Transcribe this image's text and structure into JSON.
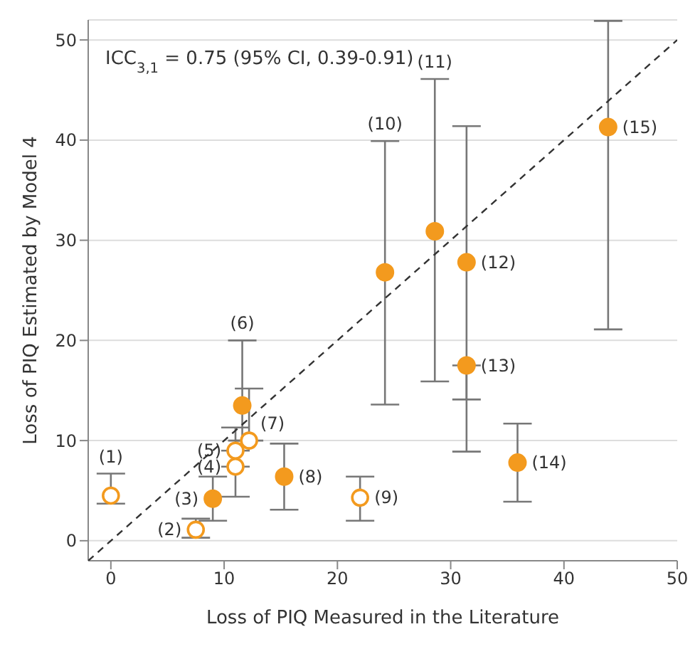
{
  "chart_data": {
    "type": "scatter",
    "xlabel": "Loss of PIQ Measured in the Literature",
    "ylabel": "Loss of PIQ Estimated by Model 4",
    "annotations": [
      "ICC$_{3,1}$ = 0.75 (95% CI, 0.39-0.91)",
      {
        "text": "(1)",
        "x": 0,
        "y": 6.7
      },
      {
        "text": "(2)",
        "x": 7.5,
        "y": 1.1
      },
      {
        "text": "(3)",
        "x": 9,
        "y": 4.2
      },
      {
        "text": "(4)",
        "x": 11,
        "y": 7.4
      },
      {
        "text": "(5)",
        "x": 11,
        "y": 9
      },
      {
        "text": "(6)",
        "x": 11.6,
        "y": 20
      },
      {
        "text": "(7)",
        "x": 12.2,
        "y": 10
      },
      {
        "text": "(8)",
        "x": 15.3,
        "y": 6.4
      },
      {
        "text": "(9)",
        "x": 22,
        "y": 4.3
      },
      {
        "text": "(10)",
        "x": 24.2,
        "y": 39.9
      },
      {
        "text": "(11)",
        "x": 28.6,
        "y": 46.1
      },
      {
        "text": "(12)",
        "x": 31.4,
        "y": 27.8
      },
      {
        "text": "(13)",
        "x": 31.4,
        "y": 17.5
      },
      {
        "text": "(14)",
        "x": 35.9,
        "y": 7.8
      },
      {
        "text": "(15)",
        "x": 43.9,
        "y": 41.3
      }
    ],
    "xlim": [
      -2,
      50
    ],
    "xticks": [
      0,
      10,
      20,
      30,
      40,
      50
    ],
    "ylim": [
      -2,
      52
    ],
    "yticks": [
      0,
      10,
      20,
      30,
      40,
      50
    ],
    "grid": "y",
    "marker": "circle",
    "series": [
      {
        "marker": "circle-open",
        "color": "#f39a1e",
        "x": [
          0,
          7.5,
          11,
          11,
          12.2,
          22
        ],
        "values": [
          4.5,
          1.1,
          7.4,
          9,
          10,
          4.3
        ],
        "errors": [
          [
            3.7,
            6.7
          ],
          [
            0.3,
            2.2
          ],
          [
            4.4,
            7.4
          ],
          [
            9,
            11.3
          ],
          [
            10,
            15.2
          ],
          [
            2,
            6.4
          ]
        ]
      },
      {
        "color": "#f39a1e",
        "x": [
          9,
          11.6,
          15.3,
          24.2,
          28.6,
          31.4,
          31.4,
          35.9,
          43.9
        ],
        "values": [
          4.2,
          13.5,
          6.4,
          26.8,
          30.9,
          27.8,
          17.5,
          7.8,
          41.3
        ],
        "errors": [
          [
            2,
            6.4
          ],
          [
            10,
            20
          ],
          [
            3.1,
            9.7
          ],
          [
            13.6,
            39.9
          ],
          [
            15.9,
            46.1
          ],
          [
            14.1,
            41.4
          ],
          [
            8.9,
            17.5
          ],
          [
            3.9,
            11.7
          ],
          [
            21.1,
            51.9
          ]
        ]
      },
      {
        "type": "line",
        "color": "#333333",
        "line_style": "dashed",
        "marker": "none",
        "x": [
          -2,
          50
        ],
        "values": [
          -2,
          50
        ]
      }
    ]
  }
}
